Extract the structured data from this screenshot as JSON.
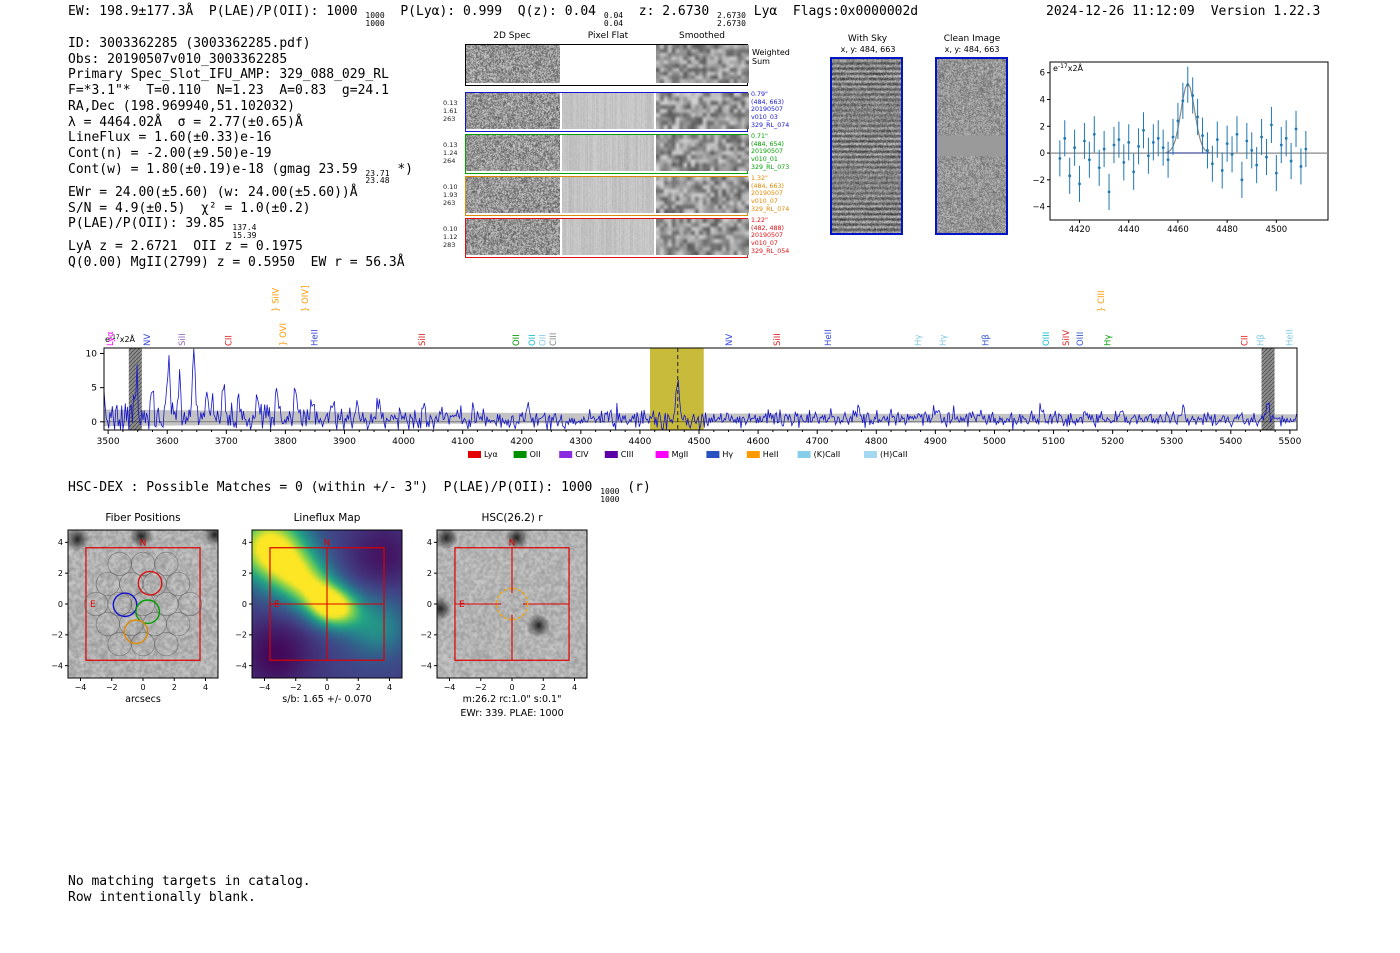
{
  "header": {
    "segments": [
      {
        "t": "EW: 198.9±177.3Å  P(LAE)/P(OII): 1000 "
      },
      {
        "f": [
          "1000",
          "1000"
        ]
      },
      {
        "t": "  P(Lyα): 0.999  Q(z): 0.04 "
      },
      {
        "f": [
          "0.04",
          "0.04"
        ]
      },
      {
        "t": "  z: 2.6730 "
      },
      {
        "f": [
          "2.6730",
          "2.6730"
        ]
      },
      {
        "t": " Lyα  Flags:0x0000002d"
      }
    ],
    "datetime": "2024-12-26 11:12:09",
    "version": "Version 1.22.3"
  },
  "info_lines": [
    "ID: 3003362285 (3003362285.pdf)",
    "Obs: 20190507v010_3003362285",
    "Primary Spec_Slot_IFU_AMP: 329_088_029_RL",
    "F=*3.1\"*  T=0.110  N=1.23  A=0.83  g=24.1",
    "RA,Dec (198.969940,51.102032)",
    "λ = 4464.02Å  σ = 2.77(±0.65)Å",
    "LineFlux = 1.60(±0.33)e-16",
    "Cont(n) = -2.00(±9.50)e-19",
    "Cont(w) = 1.80(±0.19)e-18 (gmag 23.59 {{23.71|23.48}} *)",
    "EWr = 24.00(±5.60) (w: 24.00(±5.60))Å",
    "S/N = 4.9(±0.5)  χ² = 1.0(±0.2)",
    "P(LAE)/P(OII): 39.85 {{137.4|15.39}}",
    "LyA z = 2.6721  OII z = 0.1975",
    "Q(0.00) MgII(2799) z = 0.5950  EW r = 56.3Å"
  ],
  "spec2d": {
    "column_titles": [
      "2D Spec",
      "Pixel Flat",
      "Smoothed"
    ],
    "weighted_label": [
      "Weighted",
      "Sum"
    ],
    "rows": [
      {
        "color": "#1414d2",
        "left": [
          "0.13",
          "1.61",
          "263"
        ],
        "right": [
          "0.79\"",
          "(484, 663)",
          "20190507",
          "v010_03",
          "329_RL_074"
        ]
      },
      {
        "color": "#00a000",
        "left": [
          "0.13",
          "1.24",
          "264"
        ],
        "right": [
          "0.71\"",
          "(484, 654)",
          "20190507",
          "v010_01",
          "329_RL_073"
        ]
      },
      {
        "color": "#e08800",
        "left": [
          "0.10",
          "1.93",
          "263"
        ],
        "right": [
          "1.32\"",
          "(484, 663)",
          "20190507",
          "v010_07",
          "329_RL_074"
        ]
      },
      {
        "color": "#dd1111",
        "left": [
          "0.10",
          "1.12",
          "283"
        ],
        "right": [
          "1.22\"",
          "(482, 488)",
          "20190507",
          "v010_07",
          "329_RL_054"
        ]
      }
    ]
  },
  "cutouts": {
    "with_sky": {
      "title": "With Sky",
      "coords": "x, y: 484, 663"
    },
    "clean": {
      "title": "Clean Image",
      "coords": "x, y: 484, 663"
    }
  },
  "hsc_dex": {
    "segments": [
      {
        "t": "HSC-DEX : Possible Matches = 0 (within +/- 3\")  P(LAE)/P(OII): 1000 "
      },
      {
        "f": [
          "1000",
          "1000"
        ]
      },
      {
        "t": " (r)"
      }
    ]
  },
  "footer_lines": [
    "No matching targets in catalog.",
    "Row intentionally blank."
  ],
  "chart_data": [
    {
      "name": "line_fit_inset",
      "type": "scatter",
      "unit_label": {
        "prefix": "e",
        "sup": "-17",
        "suffix": "x2Å"
      },
      "xlim": [
        4408,
        4521
      ],
      "ylim": [
        -5.0,
        6.8
      ],
      "xticks": [
        4420,
        4440,
        4460,
        4480,
        4500
      ],
      "yticks": [
        -4,
        -2,
        0,
        2,
        4,
        6
      ],
      "point_color": "#1f77b4",
      "fit_color": "#8a8a8a",
      "zero_line_color": "#1a237e",
      "points": {
        "x_start": 4412,
        "x_step": 2,
        "n": 51,
        "y": [
          -0.4,
          1.1,
          -1.7,
          0.4,
          -2.3,
          0.9,
          -0.5,
          1.4,
          -1.1,
          0.3,
          -2.9,
          0.6,
          1.0,
          -0.7,
          0.8,
          -1.4,
          0.5,
          1.7,
          -0.2,
          0.8,
          1.1,
          0.4,
          -0.5,
          1.2,
          2.4,
          3.9,
          5.1,
          4.3,
          2.7,
          1.3,
          0.2,
          -0.8,
          1.0,
          -1.3,
          0.7,
          -0.1,
          1.4,
          -2.0,
          0.9,
          0.2,
          -0.9,
          1.2,
          -0.3,
          2.1,
          -1.5,
          0.6,
          1.1,
          -0.6,
          1.8,
          -1.0,
          0.3
        ],
        "yerr_const": 1.35
      },
      "fit": {
        "center": 4464.02,
        "sigma": 2.77,
        "amplitude": 5.2,
        "baseline": 0.0
      }
    },
    {
      "name": "full_spectrum",
      "type": "line",
      "unit_label": {
        "prefix": "e",
        "sup": "-17",
        "suffix": "x2Å"
      },
      "xlim": [
        3493,
        5512
      ],
      "ylim": [
        -1.2,
        10.8
      ],
      "xticks": [
        3500,
        3600,
        3700,
        3800,
        3900,
        4000,
        4100,
        4200,
        4300,
        4400,
        4500,
        4600,
        4700,
        4800,
        4900,
        5000,
        5100,
        5200,
        5300,
        5400,
        5500
      ],
      "yticks": [
        0,
        5,
        10
      ],
      "line_color": "#1515c8",
      "err_band_color": "#bcbcbc",
      "highlight": {
        "x0": 4417,
        "x1": 4508,
        "color": "#c3b52a"
      },
      "dashed_line_x": 4464,
      "masked_bands": [
        [
          3535,
          3557
        ],
        [
          5452,
          5474
        ]
      ],
      "noise": {
        "seed": 7,
        "baseline": 0.45,
        "amp_profile": [
          [
            3495,
            1.5
          ],
          [
            3700,
            1.2
          ],
          [
            3900,
            0.95
          ],
          [
            4100,
            0.8
          ],
          [
            4500,
            0.65
          ],
          [
            5500,
            0.55
          ]
        ],
        "err_profile": [
          [
            3495,
            1.35
          ],
          [
            3900,
            1.0
          ],
          [
            4300,
            0.8
          ],
          [
            5500,
            0.65
          ]
        ]
      },
      "peaks": [
        {
          "x": 3548,
          "h": 5.6,
          "w": 2.5
        },
        {
          "x": 3576,
          "h": 4.0,
          "w": 2.5
        },
        {
          "x": 3603,
          "h": 8.8,
          "w": 2.5
        },
        {
          "x": 3621,
          "h": 6.2,
          "w": 2.5
        },
        {
          "x": 3645,
          "h": 9.9,
          "w": 2.5
        },
        {
          "x": 3667,
          "h": 5.2,
          "w": 2.5
        },
        {
          "x": 3695,
          "h": 4.3,
          "w": 2.5
        },
        {
          "x": 3722,
          "h": 3.1,
          "w": 2.5
        },
        {
          "x": 3752,
          "h": 4.6,
          "w": 2.5
        },
        {
          "x": 3786,
          "h": 5.0,
          "w": 2.5
        },
        {
          "x": 3818,
          "h": 4.2,
          "w": 2.5
        },
        {
          "x": 3845,
          "h": 3.3,
          "w": 2.5
        },
        {
          "x": 3880,
          "h": 2.6,
          "w": 2.5
        },
        {
          "x": 3921,
          "h": 3.2,
          "w": 2.5
        },
        {
          "x": 3958,
          "h": 2.4,
          "w": 2.5
        },
        {
          "x": 4034,
          "h": 2.8,
          "w": 2.5
        },
        {
          "x": 4118,
          "h": 2.2,
          "w": 2.5
        },
        {
          "x": 4210,
          "h": 2.0,
          "w": 2.5
        },
        {
          "x": 4464,
          "h": 5.9,
          "w": 2.8
        },
        {
          "x": 4620,
          "h": 1.6,
          "w": 2.5
        },
        {
          "x": 4770,
          "h": 1.8,
          "w": 2.5
        },
        {
          "x": 4905,
          "h": 1.5,
          "w": 2.5
        },
        {
          "x": 5080,
          "h": 1.6,
          "w": 2.5
        },
        {
          "x": 5215,
          "h": 1.9,
          "w": 2.5
        },
        {
          "x": 5320,
          "h": 1.4,
          "w": 2.5
        },
        {
          "x": 5462,
          "h": 2.0,
          "w": 2.5
        }
      ],
      "emission_labels": [
        {
          "label": "Lyα",
          "wl": 3508,
          "color": "#ff00ff",
          "tier": 0
        },
        {
          "label": "NV",
          "wl": 3571,
          "color": "#3344dd",
          "tier": 0
        },
        {
          "label": "SiII",
          "wl": 3630,
          "color": "#9467bd",
          "tier": 0
        },
        {
          "label": "CII",
          "wl": 3709,
          "color": "#dd2222",
          "tier": 0
        },
        {
          "label": "SiIV",
          "wl": 3788,
          "color": "#ff9900",
          "tier": 1,
          "brace": true
        },
        {
          "label": "OVI",
          "wl": 3801,
          "color": "#ff9900",
          "tier": 0,
          "brace": true
        },
        {
          "label": "OIV]",
          "wl": 3838,
          "color": "#ff9900",
          "tier": 1,
          "brace": true
        },
        {
          "label": "HeII",
          "wl": 3854,
          "color": "#3344dd",
          "tier": 0
        },
        {
          "label": "SiII",
          "wl": 4036,
          "color": "#dd2222",
          "tier": 0
        },
        {
          "label": "OII",
          "wl": 4195,
          "color": "#009900",
          "tier": 0
        },
        {
          "label": "OII",
          "wl": 4222,
          "color": "#17becf",
          "tier": 0
        },
        {
          "label": "OII",
          "wl": 4240,
          "color": "#87ceeb",
          "tier": 0
        },
        {
          "label": "CIII",
          "wl": 4258,
          "color": "#888888",
          "tier": 0
        },
        {
          "label": "NV",
          "wl": 4556,
          "color": "#3344dd",
          "tier": 0
        },
        {
          "label": "SiII",
          "wl": 4637,
          "color": "#dd2222",
          "tier": 0
        },
        {
          "label": "HeII",
          "wl": 4723,
          "color": "#3344dd",
          "tier": 0
        },
        {
          "label": "Hγ",
          "wl": 4876,
          "color": "#7ec8e3",
          "tier": 0
        },
        {
          "label": "Hγ",
          "wl": 4918,
          "color": "#7ec8e3",
          "tier": 0
        },
        {
          "label": "Hβ",
          "wl": 4990,
          "color": "#3355cc",
          "tier": 0
        },
        {
          "label": "OIII",
          "wl": 5092,
          "color": "#17becf",
          "tier": 0
        },
        {
          "label": "SiIV",
          "wl": 5126,
          "color": "#dd2222",
          "tier": 0
        },
        {
          "label": "OIII",
          "wl": 5150,
          "color": "#3355cc",
          "tier": 0
        },
        {
          "label": "CIII",
          "wl": 5185,
          "color": "#ff9900",
          "tier": 1,
          "brace": true
        },
        {
          "label": "Hγ",
          "wl": 5196,
          "color": "#009900",
          "tier": 0
        },
        {
          "label": "CII",
          "wl": 5428,
          "color": "#dd2222",
          "tier": 0
        },
        {
          "label": "Hβ",
          "wl": 5455,
          "color": "#7ec8e3",
          "tier": 0
        },
        {
          "label": "HeII",
          "wl": 5504,
          "color": "#7ec8e3",
          "tier": 0
        }
      ],
      "legend": [
        {
          "label": "Lyα",
          "color": "#e50000"
        },
        {
          "label": "OII",
          "color": "#009000"
        },
        {
          "label": "CIV",
          "color": "#8a2be2"
        },
        {
          "label": "CIII",
          "color": "#5b00a5"
        },
        {
          "label": "MgII",
          "color": "#ff00ff"
        },
        {
          "label": "Hγ",
          "color": "#2a52be"
        },
        {
          "label": "HeII",
          "color": "#ff9900"
        },
        {
          "label": "(K)CaII",
          "color": "#87ceeb"
        },
        {
          "label": "(H)CaII",
          "color": "#a3d8f0"
        }
      ]
    },
    {
      "name": "fiber_positions",
      "type": "scatter",
      "title": "Fiber Positions",
      "xlabel": "arcsecs",
      "lim": 4.8,
      "ticks": [
        -4,
        -2,
        0,
        2,
        4
      ],
      "square": {
        "half": 3.65,
        "color": "#dd0000"
      },
      "compass": {
        "n": "N",
        "e": "E",
        "color": "#dd0000"
      },
      "fiber_radius": 0.75,
      "fibers_gray": [
        [
          -1.5,
          2.6
        ],
        [
          0,
          2.6
        ],
        [
          1.5,
          2.6
        ],
        [
          -2.25,
          1.3
        ],
        [
          -0.75,
          1.3
        ],
        [
          0.75,
          1.3
        ],
        [
          2.25,
          1.3
        ],
        [
          -3.0,
          0
        ],
        [
          -1.5,
          0
        ],
        [
          0,
          0
        ],
        [
          1.5,
          0
        ],
        [
          3.0,
          0
        ],
        [
          -2.25,
          -1.3
        ],
        [
          -0.75,
          -1.3
        ],
        [
          0.75,
          -1.3
        ],
        [
          2.25,
          -1.3
        ],
        [
          -1.5,
          -2.6
        ],
        [
          0,
          -2.6
        ],
        [
          1.5,
          -2.6
        ]
      ],
      "fibers_colored": [
        {
          "x": -1.15,
          "y": -0.05,
          "color": "#1414d2"
        },
        {
          "x": 0.3,
          "y": -0.5,
          "color": "#00a000"
        },
        {
          "x": -0.45,
          "y": -1.8,
          "color": "#e08800"
        },
        {
          "x": 0.45,
          "y": 1.35,
          "color": "#dd1111"
        }
      ],
      "dark_spots": [
        [
          -4.2,
          4.2
        ],
        [
          -0.1,
          4.4
        ],
        [
          4.6,
          4.5
        ]
      ]
    },
    {
      "name": "lineflux_map",
      "type": "heatmap",
      "title": "Lineflux Map",
      "xlabel": "s/b: 1.65 +/- 0.070",
      "lim": 4.8,
      "ticks": [
        -4,
        -2,
        0,
        2,
        4
      ],
      "square": {
        "half": 3.65,
        "color": "#dd0000"
      },
      "compass": {
        "n": "N",
        "e": "E",
        "color": "#dd0000"
      },
      "crosshair": {
        "color": "#dd0000"
      },
      "base": 0.5,
      "blobs": [
        {
          "x": -3.7,
          "y": 3.7,
          "a": 2.3,
          "s": 1.5
        },
        {
          "x": -2.0,
          "y": 2.0,
          "a": 1.5,
          "s": 1.2
        },
        {
          "x": -0.8,
          "y": 0.8,
          "a": 1.2,
          "s": 1.0
        },
        {
          "x": 0.1,
          "y": -0.05,
          "a": 1.9,
          "s": 0.85
        },
        {
          "x": 1.2,
          "y": -0.4,
          "a": 1.1,
          "s": 0.9
        },
        {
          "x": 3.2,
          "y": -1.5,
          "a": 0.8,
          "s": 1.3
        },
        {
          "x": -3.3,
          "y": -3.3,
          "a": -0.45,
          "s": 1.6
        },
        {
          "x": 3.6,
          "y": 3.2,
          "a": -0.35,
          "s": 1.5
        }
      ]
    },
    {
      "name": "hsc_cutout",
      "type": "image",
      "title": "HSC(26.2) r",
      "xlabel": "m:26.2 rc:1.0\"  s:0.1\"",
      "xlabel2": "EWr: 339. PLAE: 1000",
      "lim": 4.8,
      "ticks": [
        -4,
        -2,
        0,
        2,
        4
      ],
      "square": {
        "half": 3.65,
        "color": "#dd0000"
      },
      "compass": {
        "n": "N",
        "e": "E",
        "color": "#dd0000"
      },
      "aperture": {
        "r": 1.0,
        "color": "#f0a500"
      },
      "crosshair": {
        "color": "#dd0000",
        "gap": 0.7
      },
      "dark_spots": [
        [
          -4.2,
          4.3
        ],
        [
          0.3,
          4.3
        ],
        [
          1.7,
          -1.4
        ],
        [
          -4.6,
          -0.3
        ]
      ]
    }
  ]
}
